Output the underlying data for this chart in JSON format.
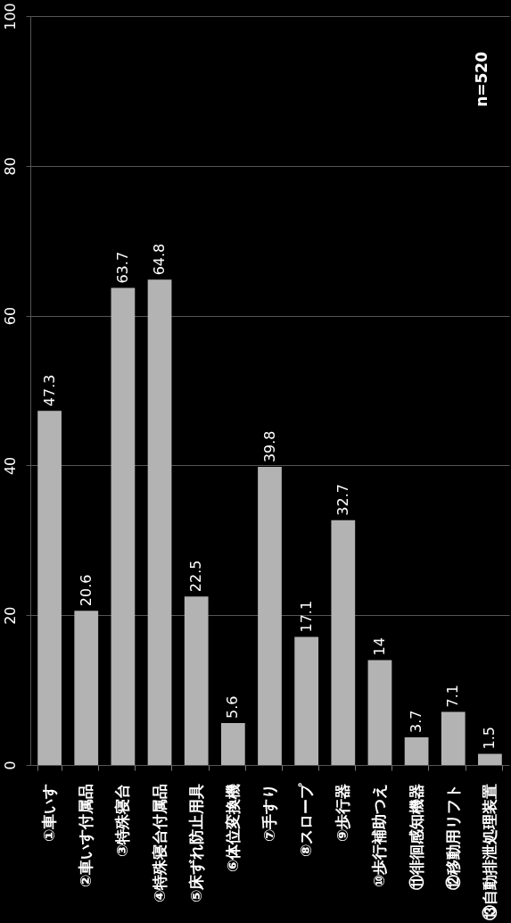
{
  "chart_data": {
    "type": "bar",
    "categories": [
      "①車いす",
      "②車いす付属品",
      "③特殊寝台",
      "④特殊寝台付属品",
      "⑤床ずれ防止用具",
      "⑥体位変換機",
      "⑦手すり",
      "⑧スロープ",
      "⑨歩行器",
      "⑩歩行補助つえ",
      "⑪徘徊感知機器",
      "⑫移動用リフト",
      "⑬自動排泄処理装置"
    ],
    "values": [
      47.3,
      20.6,
      63.7,
      64.8,
      22.5,
      5.6,
      39.8,
      17.1,
      32.7,
      14,
      3.7,
      7.1,
      1.5
    ],
    "color": "#b3b3b3",
    "ylim": [
      0,
      100
    ],
    "yticks": [
      0,
      20,
      40,
      60,
      80,
      100
    ],
    "grid": "y",
    "data_labels": true,
    "annotations": [
      "n=520"
    ]
  }
}
